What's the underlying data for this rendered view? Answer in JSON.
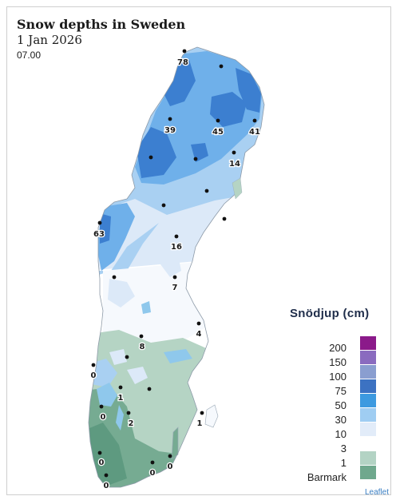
{
  "header": {
    "title": "Snow depths in Sweden",
    "date": "1 Jan 2026",
    "time": "07.00"
  },
  "stations": [
    {
      "label": "78"
    },
    {
      "label": ""
    },
    {
      "label": "39"
    },
    {
      "label": "45"
    },
    {
      "label": "41"
    },
    {
      "label": ""
    },
    {
      "label": ""
    },
    {
      "label": "14"
    },
    {
      "label": ""
    },
    {
      "label": ""
    },
    {
      "label": "63"
    },
    {
      "label": "16"
    },
    {
      "label": ""
    },
    {
      "label": "7"
    },
    {
      "label": ""
    },
    {
      "label": "4"
    },
    {
      "label": "8"
    },
    {
      "label": ""
    },
    {
      "label": "0"
    },
    {
      "label": "1"
    },
    {
      "label": ""
    },
    {
      "label": "0"
    },
    {
      "label": "2"
    },
    {
      "label": "1"
    },
    {
      "label": "0"
    },
    {
      "label": "0"
    },
    {
      "label": "0"
    },
    {
      "label": "0"
    }
  ],
  "legend": {
    "title": "Snödjup (cm)",
    "labels": [
      "200",
      "150",
      "100",
      "75",
      "50",
      "30",
      "10",
      "3",
      "1",
      "Barmark"
    ],
    "swatch_colors": [
      "#8b1a8a",
      "#8a6bbf",
      "#8a9ed0",
      "#3c72c2",
      "#3d9ae0",
      "#9fcdf2",
      "#e2ecf9",
      "#b3d3c4",
      "#6fa88d"
    ]
  },
  "colors": {
    "deep_blue": "#3c7fd0",
    "blue": "#6fb0ea",
    "light_blue": "#a9d0f2",
    "pale_blue": "#dce9f8",
    "green_light": "#b5d4c4",
    "green": "#76ab92",
    "green_dark": "#5e9a80",
    "lake": "#8fc8ec"
  },
  "attribution": "Leaflet"
}
